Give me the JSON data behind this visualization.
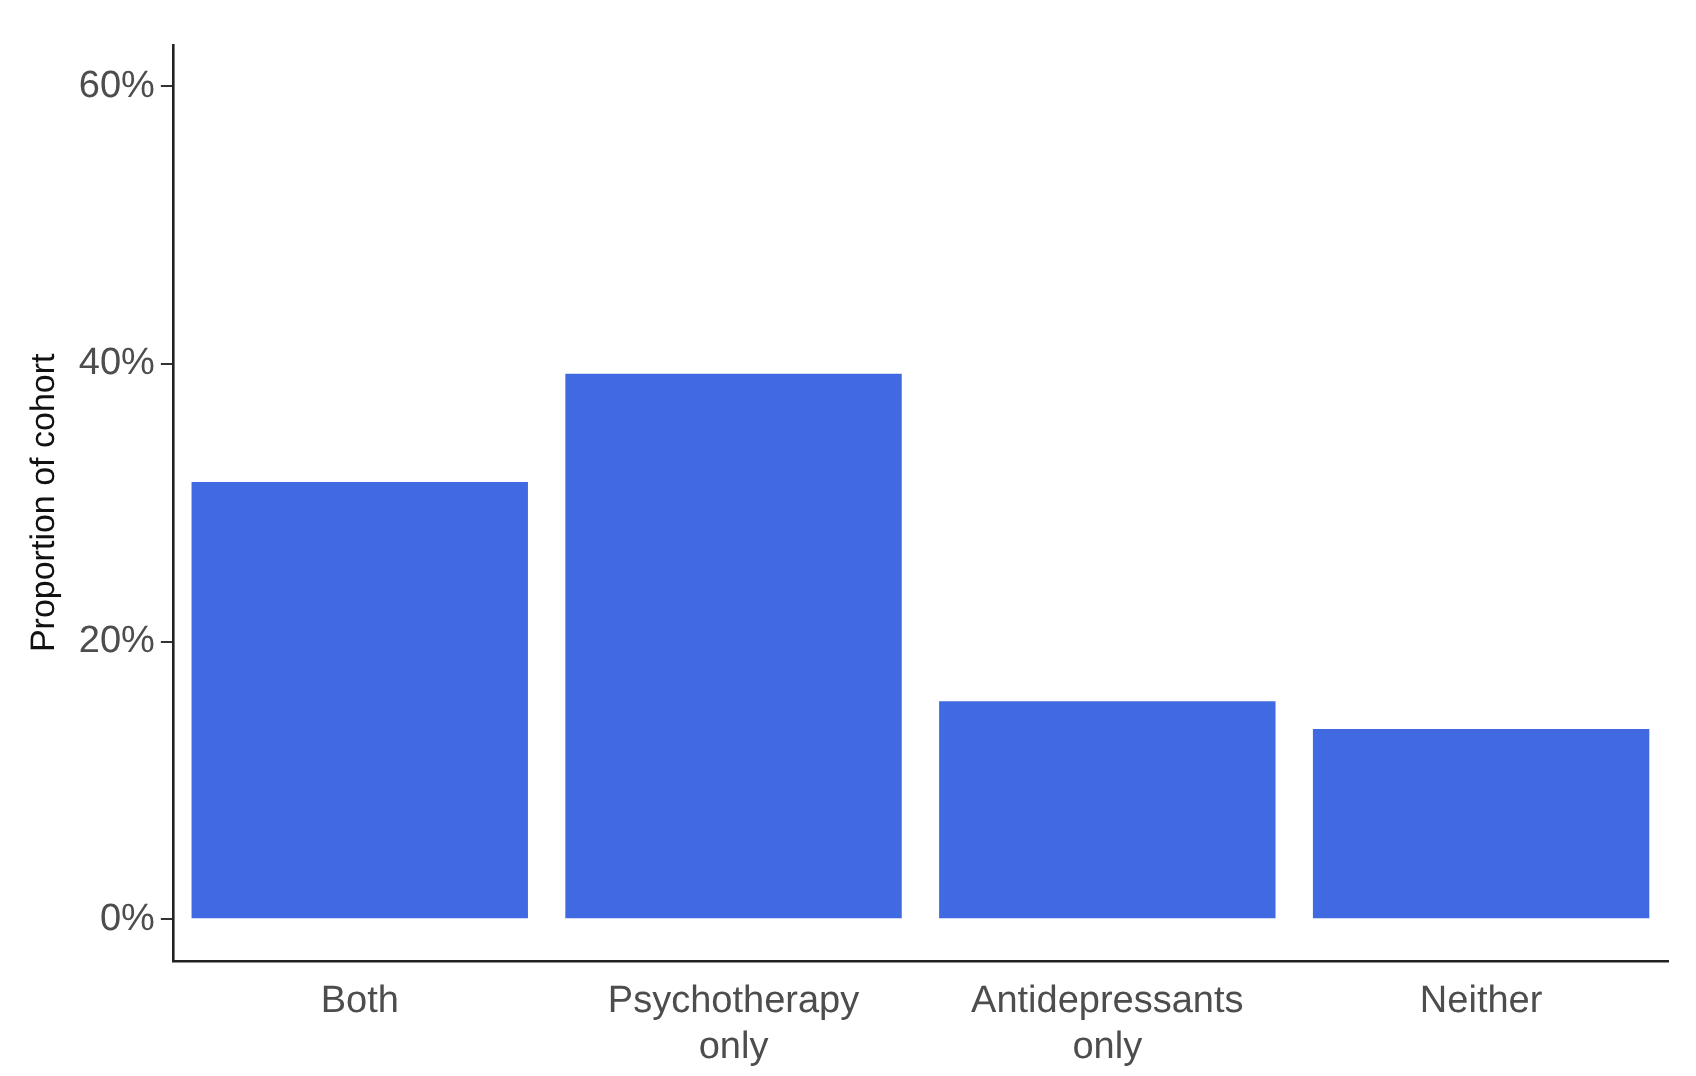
{
  "chart_data": {
    "type": "bar",
    "ylabel": "Proportion of cohort",
    "categories": [
      "Both",
      "Psychotherapy only",
      "Antidepressants only",
      "Neither"
    ],
    "values": [
      31.5,
      39.3,
      15.7,
      13.7
    ],
    "color": "#4169e1",
    "ylim": [
      -3,
      63
    ],
    "yticks": [
      {
        "value": 0,
        "label": "0%"
      },
      {
        "value": 20,
        "label": "20%"
      },
      {
        "value": 40,
        "label": "40%"
      },
      {
        "value": 60,
        "label": "60%"
      }
    ],
    "grid": false,
    "legend": false
  }
}
